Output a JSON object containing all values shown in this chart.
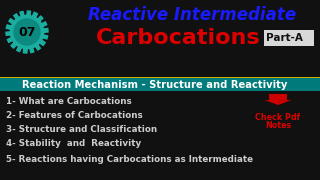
{
  "bg_color": "#111111",
  "top_bg": "#111111",
  "title1": "Reactive Intermediate",
  "title2": "Carbocations",
  "title3": "Part-A",
  "subtitle": "Reaction Mechanism - Structure and Reactivity",
  "subtitle_bg": "#007a7a",
  "items": [
    "1- What are Carbocations",
    "2- Features of Carbocations",
    "3- Structure and Classification",
    "4- Stability  and  Reactivity",
    "5- Reactions having Carbocations as Intermediate"
  ],
  "badge_text": "07",
  "badge_teal": "#1aada0",
  "badge_dark_teal": "#0d8a80",
  "title1_color": "#1a1aff",
  "title2_color": "#dd0000",
  "title3_color": "#111111",
  "title3_bg": "#e8e8e8",
  "subtitle_text_color": "#ffffff",
  "items_color": "#cccccc",
  "arrow_color": "#cc0000",
  "pdf_text_color": "#dd0000",
  "pdf_label1": "Check Pdf",
  "pdf_label2": "Notes",
  "yellow_line": "#c8b400",
  "figw": 3.2,
  "figh": 1.8,
  "dpi": 100
}
